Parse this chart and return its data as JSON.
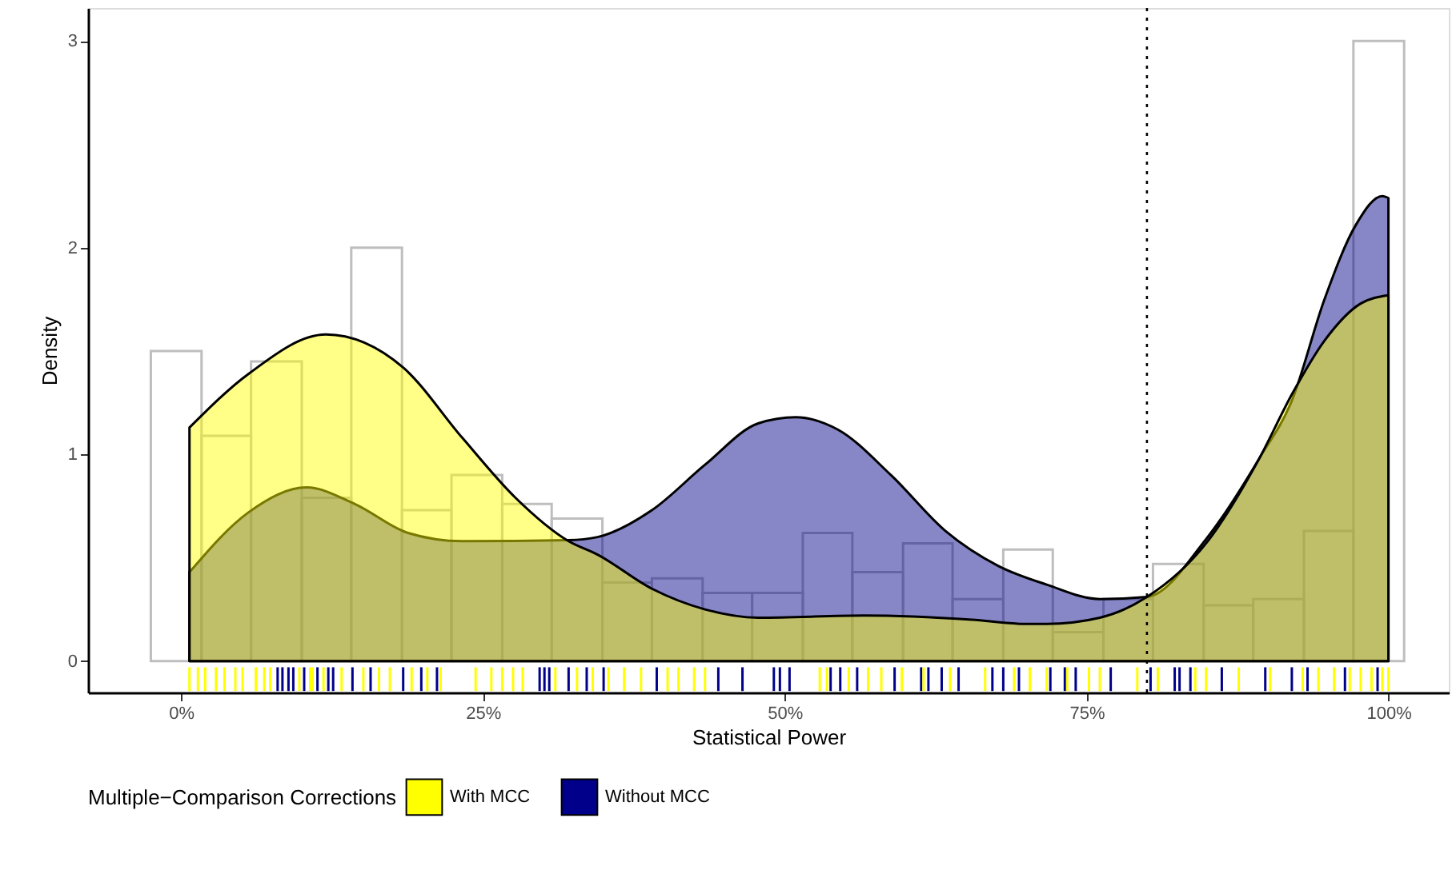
{
  "chart_data": {
    "type": "histogram",
    "xlabel": "Statistical Power",
    "ylabel": "Density",
    "legend_title": "Multiple−Comparison Corrections",
    "legend": "bottom",
    "grid": false,
    "bins": [
      -0.025,
      0.017,
      0.058,
      0.1,
      0.141,
      0.183,
      0.224,
      0.266,
      0.307,
      0.349,
      0.39,
      0.432,
      0.473,
      0.515,
      0.556,
      0.598,
      0.639,
      0.681,
      0.722,
      0.764,
      0.805,
      0.847,
      0.888,
      0.93,
      0.971,
      1.013
    ],
    "values": [
      1.5,
      1.09,
      1.45,
      0.79,
      2.0,
      0.73,
      0.9,
      0.76,
      0.69,
      0.38,
      0.4,
      0.33,
      0.33,
      0.62,
      0.43,
      0.57,
      0.3,
      0.54,
      0.14,
      0.3,
      0.47,
      0.27,
      0.3,
      0.63,
      3.0
    ],
    "color": "#bebebe",
    "series": [
      {
        "name": "With MCC",
        "type": "area",
        "color": "#ffff00",
        "x": [
          0.007,
          0.056,
          0.12,
          0.184,
          0.233,
          0.277,
          0.321,
          0.345,
          0.39,
          0.434,
          0.478,
          0.566,
          0.655,
          0.699,
          0.717,
          0.761,
          0.8,
          0.849,
          0.893,
          0.92,
          0.947,
          0.977,
          1.0
        ],
        "values": [
          1.13,
          1.39,
          1.58,
          1.42,
          1.08,
          0.79,
          0.58,
          0.515,
          0.35,
          0.25,
          0.21,
          0.22,
          0.2,
          0.18,
          0.18,
          0.21,
          0.31,
          0.57,
          0.98,
          1.29,
          1.55,
          1.73,
          1.77
        ]
      },
      {
        "name": "Without MCC",
        "type": "area",
        "color": "#00008b",
        "x": [
          0.007,
          0.056,
          0.104,
          0.144,
          0.188,
          0.233,
          0.321,
          0.345,
          0.39,
          0.434,
          0.478,
          0.509,
          0.544,
          0.588,
          0.633,
          0.677,
          0.717,
          0.761,
          0.8,
          0.849,
          0.893,
          0.92,
          0.947,
          0.973,
          0.995,
          1.0
        ],
        "values": [
          0.43,
          0.72,
          0.84,
          0.76,
          0.62,
          0.58,
          0.585,
          0.6,
          0.73,
          0.95,
          1.15,
          1.18,
          1.12,
          0.9,
          0.63,
          0.46,
          0.37,
          0.3,
          0.31,
          0.59,
          0.98,
          1.26,
          1.75,
          2.11,
          2.25,
          2.24
        ]
      },
      {
        "type": "bar",
        "color": "#ffff00",
        "x": [
          0.007,
          0.014,
          0.02,
          0.029,
          0.036,
          0.045,
          0.051,
          0.062,
          0.069,
          0.074,
          0.098,
          0.107,
          0.109,
          0.118,
          0.133,
          0.151,
          0.164,
          0.173,
          0.191,
          0.204,
          0.215,
          0.244,
          0.257,
          0.266,
          0.275,
          0.283,
          0.31,
          0.328,
          0.341,
          0.354,
          0.367,
          0.381,
          0.403,
          0.412,
          0.425,
          0.434,
          0.529,
          0.535,
          0.553,
          0.569,
          0.58,
          0.597,
          0.615,
          0.637,
          0.666,
          0.69,
          0.703,
          0.717,
          0.734,
          0.752,
          0.761,
          0.792,
          0.809,
          0.84,
          0.849,
          0.876,
          0.902,
          0.929,
          0.942,
          0.955,
          0.968,
          0.977,
          0.986,
          0.995,
          1.0
        ],
        "base": [
          -0.145,
          -0.145,
          -0.145,
          -0.145,
          -0.145,
          -0.145,
          -0.145,
          -0.145,
          -0.145,
          -0.145,
          -0.145,
          -0.145,
          -0.145,
          -0.145,
          -0.145,
          -0.145,
          -0.145,
          -0.145,
          -0.145,
          -0.145,
          -0.145,
          -0.145,
          -0.145,
          -0.145,
          -0.145,
          -0.145,
          -0.145,
          -0.145,
          -0.145,
          -0.145,
          -0.145,
          -0.145,
          -0.145,
          -0.145,
          -0.145,
          -0.145,
          -0.145,
          -0.145,
          -0.145,
          -0.145,
          -0.145,
          -0.145,
          -0.145,
          -0.145,
          -0.145,
          -0.145,
          -0.145,
          -0.145,
          -0.145,
          -0.145,
          -0.145,
          -0.145,
          -0.145,
          -0.145,
          -0.145,
          -0.145,
          -0.145,
          -0.145,
          -0.145,
          -0.145,
          -0.145,
          -0.145,
          -0.145,
          -0.145,
          -0.145
        ],
        "values": [
          0.115,
          0.115,
          0.115,
          0.115,
          0.115,
          0.115,
          0.115,
          0.115,
          0.115,
          0.115,
          0.115,
          0.115,
          0.115,
          0.115,
          0.115,
          0.115,
          0.115,
          0.115,
          0.115,
          0.115,
          0.115,
          0.115,
          0.115,
          0.115,
          0.115,
          0.115,
          0.115,
          0.115,
          0.115,
          0.115,
          0.115,
          0.115,
          0.115,
          0.115,
          0.115,
          0.115,
          0.115,
          0.115,
          0.115,
          0.115,
          0.115,
          0.115,
          0.115,
          0.115,
          0.115,
          0.115,
          0.115,
          0.115,
          0.115,
          0.115,
          0.115,
          0.115,
          0.115,
          0.115,
          0.115,
          0.115,
          0.115,
          0.115,
          0.115,
          0.115,
          0.115,
          0.115,
          0.115,
          0.115,
          0.115
        ]
      },
      {
        "type": "bar",
        "color": "#00008b",
        "x": [
          0.08,
          0.084,
          0.089,
          0.093,
          0.102,
          0.113,
          0.122,
          0.126,
          0.142,
          0.157,
          0.184,
          0.199,
          0.212,
          0.297,
          0.301,
          0.305,
          0.321,
          0.336,
          0.35,
          0.394,
          0.445,
          0.465,
          0.491,
          0.496,
          0.504,
          0.538,
          0.546,
          0.56,
          0.591,
          0.613,
          0.619,
          0.63,
          0.644,
          0.672,
          0.681,
          0.694,
          0.72,
          0.732,
          0.741,
          0.77,
          0.803,
          0.823,
          0.827,
          0.836,
          0.862,
          0.898,
          0.92,
          0.933,
          0.964,
          0.991
        ],
        "base": [
          -0.145,
          -0.145,
          -0.145,
          -0.145,
          -0.145,
          -0.145,
          -0.145,
          -0.145,
          -0.145,
          -0.145,
          -0.145,
          -0.145,
          -0.145,
          -0.145,
          -0.145,
          -0.145,
          -0.145,
          -0.145,
          -0.145,
          -0.145,
          -0.145,
          -0.145,
          -0.145,
          -0.145,
          -0.145,
          -0.145,
          -0.145,
          -0.145,
          -0.145,
          -0.145,
          -0.145,
          -0.145,
          -0.145,
          -0.145,
          -0.145,
          -0.145,
          -0.145,
          -0.145,
          -0.145,
          -0.145,
          -0.145,
          -0.145,
          -0.145,
          -0.145,
          -0.145,
          -0.145,
          -0.145,
          -0.145,
          -0.145,
          -0.145
        ],
        "values": [
          0.115,
          0.115,
          0.115,
          0.115,
          0.115,
          0.115,
          0.115,
          0.115,
          0.115,
          0.115,
          0.115,
          0.115,
          0.115,
          0.115,
          0.115,
          0.115,
          0.115,
          0.115,
          0.115,
          0.115,
          0.115,
          0.115,
          0.115,
          0.115,
          0.115,
          0.115,
          0.115,
          0.115,
          0.115,
          0.115,
          0.115,
          0.115,
          0.115,
          0.115,
          0.115,
          0.115,
          0.115,
          0.115,
          0.115,
          0.115,
          0.115,
          0.115,
          0.115,
          0.115,
          0.115,
          0.115,
          0.115,
          0.115,
          0.115,
          0.115
        ]
      }
    ],
    "ref_lines": [
      {
        "axis": "x",
        "value": 0.8,
        "line_style": "dotted",
        "color": "#000000"
      }
    ],
    "xlim": [
      -0.077,
      1.05
    ],
    "ylim": [
      -0.152,
      3.16
    ],
    "xticks": [
      {
        "value": 0,
        "label": "0%"
      },
      {
        "value": 0.25,
        "label": "25%"
      },
      {
        "value": 0.5,
        "label": "50%"
      },
      {
        "value": 0.75,
        "label": "75%"
      },
      {
        "value": 1,
        "label": "100%"
      }
    ],
    "yticks": [
      0,
      1,
      2,
      3
    ]
  }
}
